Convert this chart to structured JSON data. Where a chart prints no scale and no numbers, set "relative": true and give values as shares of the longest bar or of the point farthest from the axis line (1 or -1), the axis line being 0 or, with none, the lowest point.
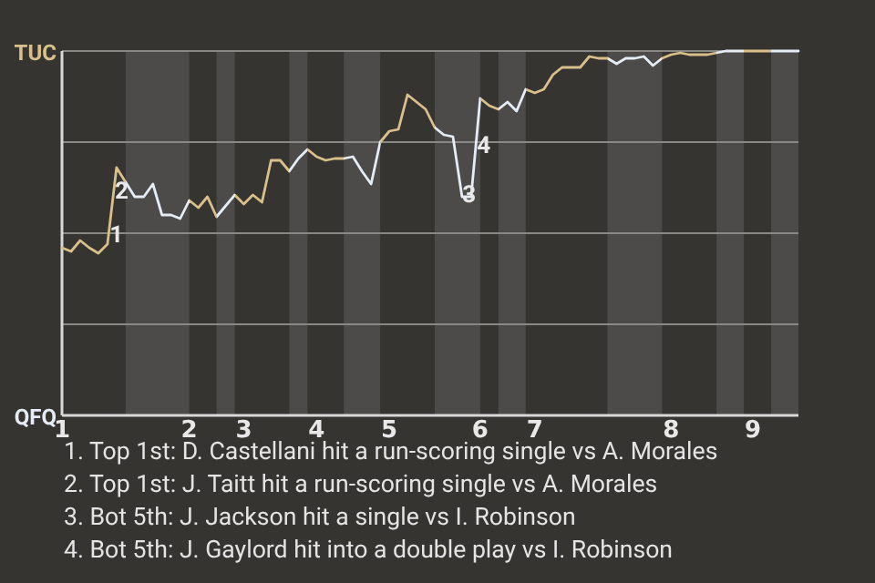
{
  "chart_data": {
    "type": "line",
    "relative": true,
    "categories": [
      "1",
      null,
      null,
      null,
      null,
      null,
      null,
      null,
      null,
      null,
      null,
      null,
      null,
      null,
      "2",
      null,
      null,
      null,
      null,
      null,
      "3",
      null,
      null,
      null,
      null,
      null,
      null,
      null,
      "4",
      null,
      null,
      null,
      null,
      null,
      null,
      null,
      "5",
      null,
      null,
      null,
      null,
      null,
      null,
      null,
      null,
      null,
      "6",
      null,
      null,
      null,
      null,
      null,
      "7",
      null,
      null,
      null,
      null,
      null,
      null,
      null,
      null,
      null,
      null,
      null,
      null,
      null,
      null,
      "8",
      null,
      null,
      null,
      null,
      null,
      null,
      null,
      null,
      "9",
      null,
      null,
      null,
      null,
      null
    ],
    "series": [
      {
        "values": [
          0.46,
          0.45,
          0.48,
          0.46,
          0.445,
          0.47,
          0.68,
          0.64,
          0.6,
          0.6,
          0.635,
          0.55,
          0.55,
          0.54,
          0.59,
          0.57,
          0.6,
          0.545,
          0.575,
          0.605,
          0.58,
          0.605,
          0.585,
          0.7,
          0.7,
          0.67,
          0.705,
          0.73,
          0.71,
          0.7,
          0.705,
          0.705,
          0.71,
          0.67,
          0.635,
          0.75,
          0.78,
          0.785,
          0.88,
          0.86,
          0.84,
          0.79,
          0.77,
          0.765,
          0.6,
          0.6,
          0.87,
          0.85,
          0.84,
          0.86,
          0.835,
          0.895,
          0.885,
          0.895,
          0.935,
          0.955,
          0.955,
          0.955,
          0.985,
          0.98,
          0.98,
          0.965,
          0.98,
          0.98,
          0.985,
          0.96,
          0.98,
          0.99,
          0.995,
          0.99,
          0.99,
          0.99,
          0.995,
          1,
          1,
          1,
          1,
          1,
          1,
          1,
          1,
          1
        ],
        "colors": [
          "#d9c08a",
          "#d9c08a",
          "#d9c08a",
          "#d9c08a",
          "#d9c08a",
          "#d9c08a",
          "#d9c08a",
          "#e6ecf5",
          "#e6ecf5",
          "#e6ecf5",
          "#e6ecf5",
          "#e6ecf5",
          "#e6ecf5",
          "#e6ecf5",
          "#d9c08a",
          "#d9c08a",
          "#d9c08a",
          "#e6ecf5",
          "#e6ecf5",
          "#d9c08a",
          "#d9c08a",
          "#d9c08a",
          "#d9c08a",
          "#d9c08a",
          "#d9c08a",
          "#e6ecf5",
          "#e6ecf5",
          "#d9c08a",
          "#d9c08a",
          "#d9c08a",
          "#d9c08a",
          "#e6ecf5",
          "#e6ecf5",
          "#e6ecf5",
          "#e6ecf5",
          "#d9c08a",
          "#d9c08a",
          "#d9c08a",
          "#d9c08a",
          "#d9c08a",
          "#d9c08a",
          "#e6ecf5",
          "#e6ecf5",
          "#e6ecf5",
          "#e6ecf5",
          "#e6ecf5",
          "#d9c08a",
          "#d9c08a",
          "#e6ecf5",
          "#e6ecf5",
          "#e6ecf5",
          "#d9c08a",
          "#d9c08a",
          "#d9c08a",
          "#d9c08a",
          "#d9c08a",
          "#d9c08a",
          "#d9c08a",
          "#d9c08a",
          "#d9c08a",
          "#e6ecf5",
          "#e6ecf5",
          "#e6ecf5",
          "#e6ecf5",
          "#e6ecf5",
          "#e6ecf5",
          "#d9c08a",
          "#d9c08a",
          "#d9c08a",
          "#d9c08a",
          "#d9c08a",
          "#d9c08a",
          "#e6ecf5",
          "#e6ecf5",
          "#e6ecf5",
          "#d9c08a",
          "#d9c08a",
          "#d9c08a",
          "#e6ecf5",
          "#e6ecf5",
          "#e6ecf5",
          "#e6ecf5"
        ]
      }
    ],
    "grid": "y",
    "annotations": [
      "TUC",
      "QFQ",
      {
        "text": "1",
        "y": 0.5
      },
      {
        "text": "2",
        "y": 0.62
      },
      {
        "text": "3",
        "y": 0.61
      },
      {
        "text": "4",
        "y": 0.745
      },
      "1. Top 1st: D. Castellani hit a run-scoring single vs A. Morales",
      "2. Top 1st: J. Taitt hit a run-scoring single vs A. Morales",
      "3. Bot 5th: J. Jackson hit a single vs I. Robinson",
      "4. Bot 5th: J. Gaylord hit into a double play vs I. Robinson"
    ]
  }
}
